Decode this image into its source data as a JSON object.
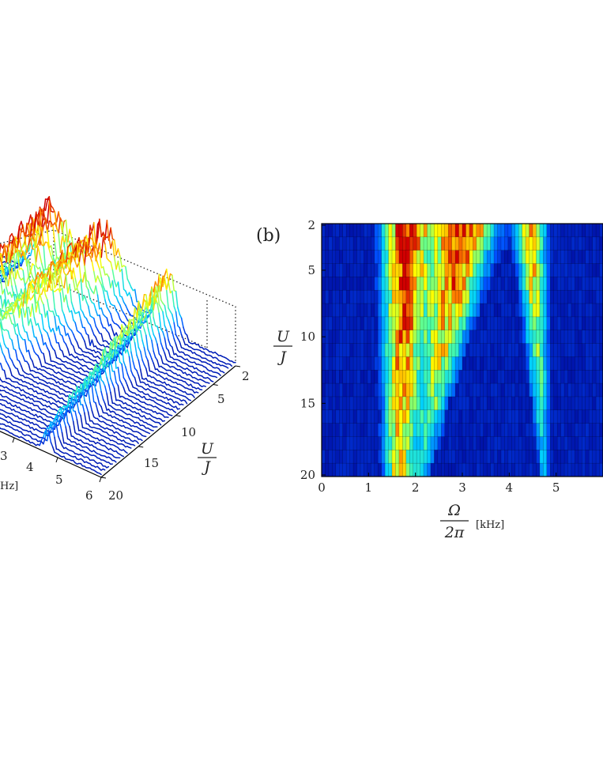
{
  "chart_data": [
    {
      "panel": "",
      "type": "waterfall",
      "x_ticks": [
        "3",
        "4",
        "5",
        "6"
      ],
      "y_ticks": [
        "2",
        "5",
        "10",
        "15",
        "20"
      ],
      "y_label_num": "U",
      "y_label_den": "J",
      "x_unit_fragment": "Hz]",
      "x_range": [
        0,
        6
      ],
      "u_range": [
        2,
        20
      ],
      "colormap": [
        "#00008f",
        "#0050ff",
        "#00d0ff",
        "#50ff9f",
        "#ffff00",
        "#ff8000",
        "#d00000"
      ]
    },
    {
      "panel": "(b)",
      "type": "heatmap",
      "x_ticks": [
        "0",
        "1",
        "2",
        "3",
        "4",
        "5"
      ],
      "y_ticks": [
        "2",
        "5",
        "10",
        "15",
        "20"
      ],
      "x_label_num": "Ω",
      "x_label_den": "2π",
      "x_unit": "[kHz]",
      "y_label_num": "U",
      "y_label_den": "J",
      "x_range": [
        0,
        6
      ],
      "y_range": [
        2,
        20
      ],
      "grid": true,
      "colormap": [
        "#00008f",
        "#0050ff",
        "#00d0ff",
        "#50ff9f",
        "#ffff00",
        "#ff8000",
        "#d00000"
      ],
      "features": [
        {
          "center_khz": [
            1.8,
            1.65
          ],
          "width_khz": [
            0.45,
            0.3
          ],
          "peak": [
            0.98,
            0.68
          ]
        },
        {
          "center_khz": [
            3.0,
            2.15
          ],
          "width_khz": [
            0.65,
            0.18
          ],
          "peak": [
            1.0,
            0.3
          ]
        },
        {
          "center_khz": [
            4.45,
            4.75
          ],
          "width_khz": [
            0.3,
            0.12
          ],
          "peak": [
            0.78,
            0.28
          ]
        }
      ]
    }
  ]
}
